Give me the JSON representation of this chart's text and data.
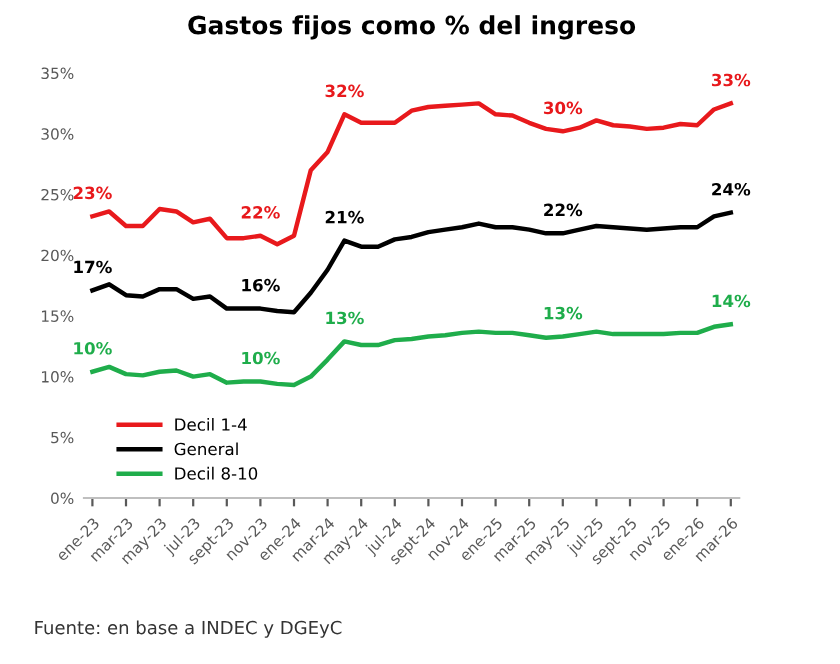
{
  "chart_data": {
    "type": "line",
    "title": "Gastos fijos como % del ingreso",
    "categories": [
      "ene-23",
      null,
      "mar-23",
      null,
      "may-23",
      null,
      "jul-23",
      null,
      "sept-23",
      null,
      "nov-23",
      null,
      "ene-24",
      null,
      "mar-24",
      null,
      "may-24",
      null,
      "jul-24",
      null,
      "sept-24",
      null,
      "nov-24",
      null,
      "ene-25",
      null,
      "mar-25",
      null,
      "may-25",
      null,
      "jul-25",
      null,
      "sept-25",
      null,
      "nov-25",
      null,
      "ene-26",
      null,
      "mar-26"
    ],
    "series": [
      {
        "name": "Decil 1-4",
        "color": "#e8191c",
        "values": [
          23.2,
          23.6,
          22.4,
          22.4,
          23.8,
          23.6,
          22.7,
          23.0,
          21.4,
          21.4,
          21.6,
          20.9,
          21.6,
          27.0,
          28.5,
          31.6,
          30.9,
          30.9,
          30.9,
          31.9,
          32.2,
          32.3,
          32.4,
          32.5,
          31.6,
          31.5,
          30.9,
          30.4,
          30.2,
          30.5,
          31.1,
          30.7,
          30.6,
          30.4,
          30.5,
          30.8,
          30.7,
          32.0,
          32.5
        ],
        "value_labels": [
          "23%",
          null,
          null,
          null,
          null,
          null,
          null,
          null,
          null,
          null,
          "22%",
          null,
          null,
          null,
          null,
          "32%",
          null,
          null,
          null,
          null,
          null,
          null,
          null,
          null,
          null,
          null,
          null,
          null,
          "30%",
          null,
          null,
          null,
          null,
          null,
          null,
          null,
          null,
          null,
          "33%"
        ]
      },
      {
        "name": "General",
        "color": "#000000",
        "values": [
          17.1,
          17.6,
          16.7,
          16.6,
          17.2,
          17.2,
          16.4,
          16.6,
          15.6,
          15.6,
          15.6,
          15.4,
          15.3,
          16.9,
          18.8,
          21.2,
          20.7,
          20.7,
          21.3,
          21.5,
          21.9,
          22.1,
          22.3,
          22.6,
          22.3,
          22.3,
          22.1,
          21.8,
          21.8,
          22.1,
          22.4,
          22.3,
          22.2,
          22.1,
          22.2,
          22.3,
          22.3,
          23.2,
          23.5
        ],
        "value_labels": [
          "17%",
          null,
          null,
          null,
          null,
          null,
          null,
          null,
          null,
          null,
          "16%",
          null,
          null,
          null,
          null,
          "21%",
          null,
          null,
          null,
          null,
          null,
          null,
          null,
          null,
          null,
          null,
          null,
          null,
          "22%",
          null,
          null,
          null,
          null,
          null,
          null,
          null,
          null,
          null,
          "24%"
        ]
      },
      {
        "name": "Decil 8-10",
        "color": "#1fad4b",
        "values": [
          10.4,
          10.8,
          10.2,
          10.1,
          10.4,
          10.5,
          10.0,
          10.2,
          9.5,
          9.6,
          9.6,
          9.4,
          9.3,
          10.0,
          11.4,
          12.9,
          12.6,
          12.6,
          13.0,
          13.1,
          13.3,
          13.4,
          13.6,
          13.7,
          13.6,
          13.6,
          13.4,
          13.2,
          13.3,
          13.5,
          13.7,
          13.5,
          13.5,
          13.5,
          13.5,
          13.6,
          13.6,
          14.1,
          14.3
        ],
        "value_labels": [
          "10%",
          null,
          null,
          null,
          null,
          null,
          null,
          null,
          null,
          null,
          "10%",
          null,
          null,
          null,
          null,
          "13%",
          null,
          null,
          null,
          null,
          null,
          null,
          null,
          null,
          null,
          null,
          null,
          null,
          "13%",
          null,
          null,
          null,
          null,
          null,
          null,
          null,
          null,
          null,
          "14%"
        ]
      }
    ],
    "ylim": [
      0,
      35
    ],
    "yticks": [
      {
        "value": 0,
        "label": "0%"
      },
      {
        "value": 5,
        "label": "5%"
      },
      {
        "value": 10,
        "label": "10%"
      },
      {
        "value": 15,
        "label": "15%"
      },
      {
        "value": 20,
        "label": "20%"
      },
      {
        "value": 25,
        "label": "25%"
      },
      {
        "value": 30,
        "label": "30%"
      },
      {
        "value": 35,
        "label": "35%"
      }
    ],
    "grid": false,
    "legend": "bottom left",
    "marker": "none",
    "line_style": "solid",
    "annotations": [
      "Fuente: en base a INDEC y DGEyC"
    ]
  }
}
